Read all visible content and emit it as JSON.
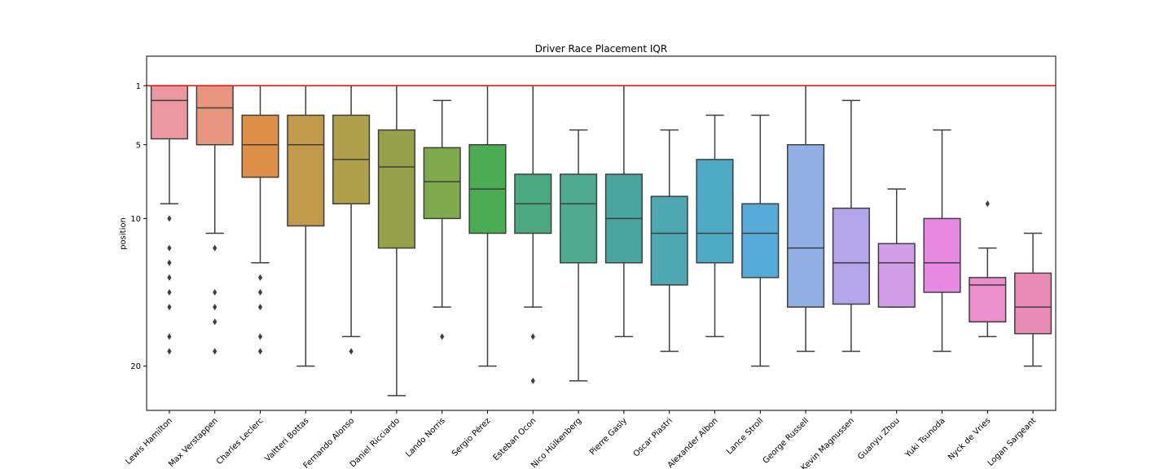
{
  "chart_data": {
    "type": "box",
    "title": "Driver Race Placement IQR",
    "xlabel": "",
    "ylabel": "position",
    "y_axis": "inverted",
    "ylim": [
      23,
      -1
    ],
    "yticks": [
      1,
      5,
      10,
      20
    ],
    "grid": false,
    "reference_line": {
      "y": 1,
      "color": "#ff0000"
    },
    "categories": [
      "Lewis Hamilton",
      "Max Verstappen",
      "Charles Leclerc",
      "Valtteri Bottas",
      "Fernando Alonso",
      "Daniel Ricciardo",
      "Lando Norris",
      "Sergio Pérez",
      "Esteban Ocon",
      "Nico Hülkenberg",
      "Pierre Gasly",
      "Oscar Piastri",
      "Alexander Albon",
      "Lance Stroll",
      "George Russell",
      "Kevin Magnussen",
      "Guanyu Zhou",
      "Yuki Tsunoda",
      "Nyck de Vries",
      "Logan Sargeant"
    ],
    "colors": [
      "#ec97a0",
      "#e7967d",
      "#dd8f48",
      "#c09a4a",
      "#b1a04b",
      "#96a049",
      "#7ea94d",
      "#4aad53",
      "#4ca881",
      "#4eab90",
      "#4aa5a0",
      "#4ea8b2",
      "#4ea9c4",
      "#55aad8",
      "#91aee5",
      "#b3a5ea",
      "#d19de6",
      "#e788e3",
      "#ec8ecb",
      "#e98bb4"
    ],
    "boxes": [
      {
        "whislo": 1,
        "q1": 1,
        "med": 2,
        "q3": 4.6,
        "whishi": 9,
        "fliers": [
          10,
          12,
          13,
          14,
          15,
          16,
          18,
          19
        ]
      },
      {
        "whislo": 1,
        "q1": 1,
        "med": 2.5,
        "q3": 5,
        "whishi": 11,
        "fliers": [
          12,
          15,
          16,
          17,
          19
        ]
      },
      {
        "whislo": 1,
        "q1": 3,
        "med": 5,
        "q3": 7.2,
        "whishi": 13,
        "fliers": [
          14,
          15,
          16,
          18,
          19
        ]
      },
      {
        "whislo": 1,
        "q1": 3,
        "med": 5,
        "q3": 10.5,
        "whishi": 20,
        "fliers": []
      },
      {
        "whislo": 1,
        "q1": 3,
        "med": 6,
        "q3": 9,
        "whishi": 18,
        "fliers": [
          19
        ]
      },
      {
        "whislo": 1,
        "q1": 4,
        "med": 6.5,
        "q3": 12,
        "whishi": 22,
        "fliers": []
      },
      {
        "whislo": 2,
        "q1": 5.2,
        "med": 7.5,
        "q3": 10,
        "whishi": 16,
        "fliers": [
          18
        ]
      },
      {
        "whislo": 1,
        "q1": 5,
        "med": 8,
        "q3": 11,
        "whishi": 20,
        "fliers": []
      },
      {
        "whislo": 1,
        "q1": 7,
        "med": 9,
        "q3": 11,
        "whishi": 16,
        "fliers": [
          18,
          21
        ]
      },
      {
        "whislo": 4,
        "q1": 7,
        "med": 9,
        "q3": 13,
        "whishi": 21,
        "fliers": []
      },
      {
        "whislo": 1,
        "q1": 7,
        "med": 10,
        "q3": 13,
        "whishi": 18,
        "fliers": []
      },
      {
        "whislo": 4,
        "q1": 8.5,
        "med": 11,
        "q3": 14.5,
        "whishi": 19,
        "fliers": []
      },
      {
        "whislo": 3,
        "q1": 6,
        "med": 11,
        "q3": 13,
        "whishi": 18,
        "fliers": []
      },
      {
        "whislo": 3,
        "q1": 9,
        "med": 11,
        "q3": 14,
        "whishi": 20,
        "fliers": []
      },
      {
        "whislo": 1,
        "q1": 5,
        "med": 12,
        "q3": 16,
        "whishi": 19,
        "fliers": []
      },
      {
        "whislo": 2,
        "q1": 9.3,
        "med": 13,
        "q3": 15.8,
        "whishi": 19,
        "fliers": []
      },
      {
        "whislo": 8,
        "q1": 11.7,
        "med": 13,
        "q3": 16,
        "whishi": 16,
        "fliers": []
      },
      {
        "whislo": 4,
        "q1": 10,
        "med": 13,
        "q3": 15,
        "whishi": 19,
        "fliers": []
      },
      {
        "whislo": 12,
        "q1": 14,
        "med": 14.5,
        "q3": 17,
        "whishi": 18,
        "fliers": [
          9
        ]
      },
      {
        "whislo": 11,
        "q1": 13.7,
        "med": 16,
        "q3": 17.8,
        "whishi": 20,
        "fliers": []
      }
    ]
  }
}
